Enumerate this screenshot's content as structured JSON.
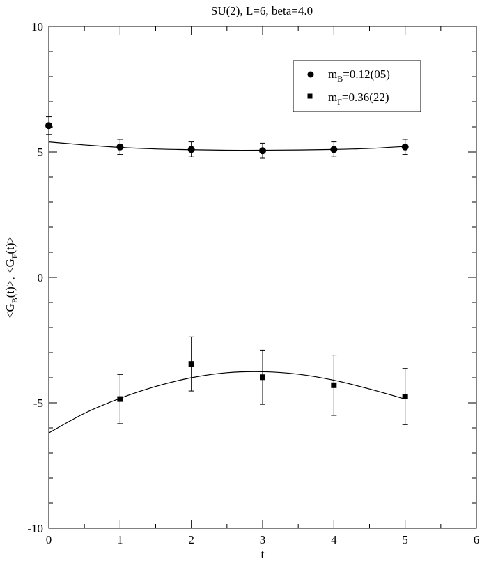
{
  "chart_data": {
    "type": "scatter",
    "title": "SU(2), L=6, beta=4.0",
    "xlabel": "t",
    "ylabel": {
      "parts": [
        "<G",
        "B",
        "(t)>, <G",
        "F",
        "(t)>"
      ]
    },
    "xlim": [
      0,
      6
    ],
    "ylim": [
      -10,
      10
    ],
    "x_ticks": [
      0,
      1,
      2,
      3,
      4,
      5,
      6
    ],
    "x_tick_labels": [
      "0",
      "1",
      "2",
      "3",
      "4",
      "5",
      "6"
    ],
    "y_ticks": [
      -10,
      -5,
      0,
      5,
      10
    ],
    "y_tick_labels": [
      "-10",
      "-5",
      "0",
      "5",
      "10"
    ],
    "grid": false,
    "legend_position": "top-right",
    "series": [
      {
        "name": "m_B=0.12(05)",
        "legend": {
          "main": "m",
          "sub": "B",
          "rest": "=0.12(05)"
        },
        "marker": "circle",
        "points": [
          {
            "x": 0,
            "y": 6.05,
            "err": 0.35
          },
          {
            "x": 1,
            "y": 5.2,
            "err": 0.3
          },
          {
            "x": 2,
            "y": 5.1,
            "err": 0.3
          },
          {
            "x": 3,
            "y": 5.05,
            "err": 0.3
          },
          {
            "x": 4,
            "y": 5.1,
            "err": 0.3
          },
          {
            "x": 5,
            "y": 5.2,
            "err": 0.3
          }
        ],
        "fit": {
          "x": [
            0,
            0.5,
            1,
            1.5,
            2,
            2.5,
            3,
            3.5,
            4,
            4.5,
            5
          ],
          "y": [
            5.4,
            5.28,
            5.18,
            5.12,
            5.09,
            5.07,
            5.07,
            5.08,
            5.1,
            5.14,
            5.22
          ]
        }
      },
      {
        "name": "m_F=0.36(22)",
        "legend": {
          "main": "m",
          "sub": "F",
          "rest": "=0.36(22)"
        },
        "marker": "square",
        "points": [
          {
            "x": 1,
            "y": -4.85,
            "err": 0.98
          },
          {
            "x": 2,
            "y": -3.45,
            "err": 1.08
          },
          {
            "x": 3,
            "y": -3.98,
            "err": 1.08
          },
          {
            "x": 4,
            "y": -4.3,
            "err": 1.2
          },
          {
            "x": 5,
            "y": -4.75,
            "err": 1.12
          }
        ],
        "fit": {
          "x": [
            0,
            0.5,
            1,
            1.5,
            2,
            2.5,
            3,
            3.5,
            4,
            4.5,
            5
          ],
          "y": [
            -6.2,
            -5.42,
            -4.82,
            -4.35,
            -4.0,
            -3.8,
            -3.76,
            -3.86,
            -4.1,
            -4.45,
            -4.85
          ]
        }
      }
    ]
  }
}
